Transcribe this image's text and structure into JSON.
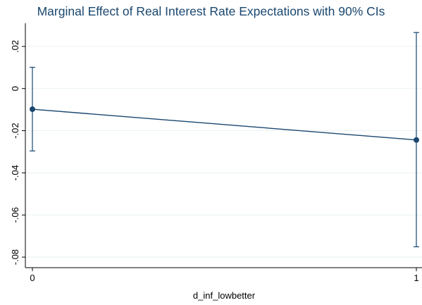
{
  "chart_data": {
    "type": "line",
    "title": "Marginal Effect of Real Interest Rate Expectations with 90% CIs",
    "xlabel": "d_inf_lowbetter",
    "ylabel": "",
    "x": [
      0,
      1
    ],
    "x_ticks": [
      "0",
      "1"
    ],
    "ylim": [
      -0.085,
      0.031
    ],
    "y_ticks": [
      {
        "value": 0.02,
        "label": ".02"
      },
      {
        "value": 0.0,
        "label": "0"
      },
      {
        "value": -0.02,
        "label": "-.02"
      },
      {
        "value": -0.04,
        "label": "-.04"
      },
      {
        "value": -0.06,
        "label": "-.06"
      },
      {
        "value": -0.08,
        "label": "-.08"
      }
    ],
    "grid": true,
    "series": [
      {
        "estimate": [
          -0.0098,
          -0.0244
        ],
        "ci_lower": [
          -0.0296,
          -0.0751
        ],
        "ci_upper": [
          0.0101,
          0.0266
        ]
      }
    ],
    "colors": {
      "line": "#1a476f",
      "marker": "#1a476f",
      "grid": "#eaf2f3",
      "title": "#1a476f"
    }
  }
}
